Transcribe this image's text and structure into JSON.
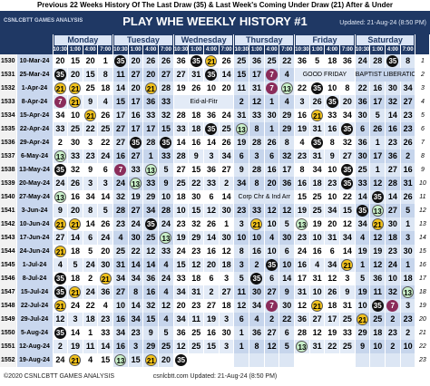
{
  "header": {
    "caption": "Previous 22 Weeks History Of The Last Draw (35) & Last Week's Coming Under Draw (21) After & Under",
    "logo": "CSNLCBTT GAMES ANALYSIS",
    "title": "PLAY WHE WEEKLY HISTORY #1",
    "updated": "Updated: 21-Aug-24 (8:50 PM)"
  },
  "days": [
    "Monday",
    "Tuesday",
    "Wednesday",
    "Thursday",
    "Friday",
    "Saturday"
  ],
  "times": [
    "10:30",
    "1:00",
    "4:00",
    "7:00"
  ],
  "circles": [
    {
      "number": 35,
      "color": "#111111",
      "text": "#ffffff"
    },
    {
      "number": 21,
      "color": "#f2c21b",
      "text": "#000000"
    },
    {
      "number": 7,
      "color": "#8a2c5a",
      "text": "#ffffff"
    },
    {
      "number": 13,
      "color": "#c9f0c9",
      "text": "#000000"
    }
  ],
  "rows": [
    {
      "id": "1530",
      "date": "10-Mar-24",
      "n": "1",
      "days": [
        [
          20,
          15,
          20,
          1
        ],
        [
          35,
          20,
          26,
          26
        ],
        [
          36,
          35,
          21,
          26
        ],
        [
          25,
          36,
          25,
          22
        ],
        [
          36,
          5,
          18,
          36
        ],
        [
          24,
          28,
          35,
          8
        ]
      ]
    },
    {
      "id": "1531",
      "date": "25-Mar-24",
      "n": "2",
      "days": [
        [
          35,
          20,
          15,
          8
        ],
        [
          11,
          27,
          20,
          27
        ],
        [
          27,
          31,
          35,
          14
        ],
        [
          15,
          17,
          7,
          4
        ],
        "GOOD FRIDAY",
        "BAPTIST LIBERATION"
      ]
    },
    {
      "id": "1532",
      "date": "1-Apr-24",
      "n": "3",
      "days": [
        [
          21,
          21,
          25,
          18
        ],
        [
          14,
          20,
          21,
          28
        ],
        [
          19,
          26,
          10,
          20
        ],
        [
          11,
          31,
          7,
          13
        ],
        [
          22,
          35,
          10,
          8
        ],
        [
          22,
          16,
          30,
          34
        ]
      ]
    },
    {
      "id": "1533",
      "date": "8-Apr-24",
      "n": "4",
      "days": [
        [
          7,
          21,
          9,
          4
        ],
        [
          15,
          17,
          36,
          33
        ],
        "Eid-al-Fitr",
        [
          2,
          12,
          1,
          4
        ],
        [
          3,
          26,
          35,
          20
        ],
        [
          36,
          17,
          32,
          27
        ]
      ]
    },
    {
      "id": "1534",
      "date": "15-Apr-24",
      "n": "5",
      "days": [
        [
          34,
          10,
          21,
          26
        ],
        [
          17,
          16,
          33,
          32
        ],
        [
          28,
          18,
          36,
          24
        ],
        [
          31,
          33,
          30,
          29
        ],
        [
          16,
          21,
          33,
          34
        ],
        [
          30,
          5,
          14,
          23
        ]
      ]
    },
    {
      "id": "1535",
      "date": "22-Apr-24",
      "n": "6",
      "days": [
        [
          33,
          25,
          22,
          25
        ],
        [
          27,
          17,
          17,
          15
        ],
        [
          33,
          18,
          35,
          25
        ],
        [
          13,
          8,
          1,
          29
        ],
        [
          19,
          31,
          16,
          35
        ],
        [
          6,
          26,
          16,
          23
        ]
      ]
    },
    {
      "id": "1536",
      "date": "29-Apr-24",
      "n": "7",
      "days": [
        [
          2,
          30,
          3,
          22
        ],
        [
          27,
          35,
          28,
          35
        ],
        [
          14,
          16,
          14,
          26
        ],
        [
          19,
          28,
          26,
          8
        ],
        [
          4,
          35,
          8,
          32
        ],
        [
          36,
          1,
          23,
          26
        ]
      ]
    },
    {
      "id": "1537",
      "date": "6-May-24",
      "n": "8",
      "days": [
        [
          13,
          33,
          23,
          24
        ],
        [
          16,
          27,
          1,
          33
        ],
        [
          28,
          9,
          3,
          34
        ],
        [
          6,
          3,
          6,
          32
        ],
        [
          23,
          31,
          9,
          27
        ],
        [
          30,
          17,
          36,
          2
        ]
      ]
    },
    {
      "id": "1538",
      "date": "13-May-24",
      "n": "9",
      "days": [
        [
          35,
          32,
          9,
          6
        ],
        [
          7,
          33,
          13,
          5
        ],
        [
          27,
          15,
          36,
          27
        ],
        [
          9,
          28,
          16,
          17
        ],
        [
          8,
          34,
          10,
          35
        ],
        [
          25,
          1,
          27,
          16
        ]
      ]
    },
    {
      "id": "1539",
      "date": "20-May-24",
      "n": "10",
      "days": [
        [
          24,
          26,
          3,
          3
        ],
        [
          24,
          13,
          33,
          9
        ],
        [
          25,
          22,
          33,
          2
        ],
        [
          34,
          8,
          20,
          36
        ],
        [
          16,
          18,
          23,
          35
        ],
        [
          33,
          12,
          28,
          31
        ]
      ]
    },
    {
      "id": "1540",
      "date": "27-May-24",
      "n": "11",
      "days": [
        [
          13,
          16,
          34,
          14
        ],
        [
          32,
          19,
          29,
          10
        ],
        [
          18,
          30,
          6,
          14
        ],
        "Corp Chr & Ind Arr",
        [
          15,
          25,
          10,
          22
        ],
        [
          14,
          35,
          14,
          26
        ]
      ]
    },
    {
      "id": "1541",
      "date": "3-Jun-24",
      "n": "12",
      "days": [
        [
          9,
          20,
          8,
          5
        ],
        [
          28,
          27,
          34,
          28
        ],
        [
          10,
          15,
          12,
          30
        ],
        [
          23,
          33,
          12,
          12
        ],
        [
          19,
          25,
          34,
          15
        ],
        [
          35,
          13,
          27,
          5
        ]
      ]
    },
    {
      "id": "1542",
      "date": "10-Jun-24",
      "n": "13",
      "days": [
        [
          21,
          21,
          14,
          26
        ],
        [
          23,
          24,
          35,
          24
        ],
        [
          23,
          32,
          26,
          1
        ],
        [
          3,
          21,
          10,
          5
        ],
        [
          13,
          19,
          20,
          12
        ],
        [
          34,
          21,
          30,
          1
        ]
      ]
    },
    {
      "id": "1543",
      "date": "17-Jun-24",
      "n": "14",
      "days": [
        [
          27,
          14,
          6,
          24
        ],
        [
          4,
          30,
          25,
          13
        ],
        [
          19,
          29,
          14,
          30
        ],
        [
          10,
          10,
          4,
          30
        ],
        [
          23,
          10,
          31,
          34
        ],
        [
          4,
          12,
          18,
          3
        ]
      ]
    },
    {
      "id": "1544",
      "date": "24-Jun-24",
      "n": "15",
      "days": [
        [
          21,
          18,
          5,
          20
        ],
        [
          25,
          22,
          12,
          33
        ],
        [
          24,
          23,
          16,
          12
        ],
        [
          8,
          16,
          10,
          6
        ],
        [
          24,
          16,
          6,
          14
        ],
        [
          19,
          19,
          23,
          30
        ]
      ]
    },
    {
      "id": "1545",
      "date": "1-Jul-24",
      "n": "16",
      "days": [
        [
          4,
          5,
          24,
          30
        ],
        [
          31,
          14,
          14,
          4
        ],
        [
          15,
          12,
          20,
          18
        ],
        [
          3,
          2,
          35,
          10
        ],
        [
          16,
          4,
          34,
          21
        ],
        [
          1,
          12,
          24,
          1
        ]
      ]
    },
    {
      "id": "1546",
      "date": "8-Jul-24",
      "n": "17",
      "days": [
        [
          35,
          18,
          2,
          21
        ],
        [
          34,
          34,
          36,
          24
        ],
        [
          33,
          18,
          6,
          3
        ],
        [
          5,
          35,
          6,
          14
        ],
        [
          17,
          31,
          12,
          3
        ],
        [
          5,
          36,
          10,
          18
        ]
      ]
    },
    {
      "id": "1547",
      "date": "15-Jul-24",
      "n": "18",
      "days": [
        [
          35,
          21,
          24,
          36
        ],
        [
          27,
          8,
          16,
          4
        ],
        [
          34,
          31,
          2,
          27
        ],
        [
          11,
          30,
          27,
          9
        ],
        [
          31,
          10,
          26,
          9
        ],
        [
          19,
          11,
          32,
          13
        ]
      ]
    },
    {
      "id": "1548",
      "date": "22-Jul-24",
      "n": "19",
      "days": [
        [
          21,
          24,
          22,
          4
        ],
        [
          10,
          14,
          32,
          12
        ],
        [
          20,
          23,
          27,
          18
        ],
        [
          12,
          34,
          7,
          30
        ],
        [
          12,
          21,
          18,
          31
        ],
        [
          10,
          35,
          7,
          3
        ]
      ]
    },
    {
      "id": "1549",
      "date": "29-Jul-24",
      "n": "20",
      "days": [
        [
          12,
          3,
          18,
          23
        ],
        [
          16,
          34,
          15,
          4
        ],
        [
          34,
          11,
          19,
          3
        ],
        [
          6,
          4,
          2,
          22
        ],
        [
          36,
          27,
          17,
          25
        ],
        [
          21,
          25,
          2,
          23
        ]
      ]
    },
    {
      "id": "1550",
      "date": "5-Aug-24",
      "n": "21",
      "days": [
        [
          35,
          14,
          1,
          33
        ],
        [
          34,
          23,
          9,
          5
        ],
        [
          36,
          25,
          16,
          30
        ],
        [
          1,
          36,
          27,
          6
        ],
        [
          28,
          12,
          19,
          33
        ],
        [
          29,
          18,
          23,
          2
        ]
      ]
    },
    {
      "id": "1551",
      "date": "12-Aug-24",
      "n": "22",
      "days": [
        [
          2,
          19,
          11,
          14
        ],
        [
          16,
          3,
          29,
          25
        ],
        [
          12,
          25,
          15,
          3
        ],
        [
          1,
          8,
          12,
          5
        ],
        [
          13,
          31,
          22,
          25
        ],
        [
          9,
          10,
          2,
          10
        ]
      ]
    },
    {
      "id": "1552",
      "date": "19-Aug-24",
      "n": "23",
      "days": [
        [
          24,
          21,
          4,
          15
        ],
        [
          13,
          15,
          21,
          20
        ],
        [
          35,
          null,
          null,
          null
        ],
        [
          null,
          null,
          null,
          null
        ],
        [
          null,
          null,
          null,
          null
        ],
        [
          null,
          null,
          null,
          null
        ]
      ]
    }
  ],
  "footer": {
    "left": "©2020 CSNLCBTT GAMES ANALYSIS",
    "center": "csnlcbtt.com Updated: 21-Aug-24 (8:50 PM)"
  }
}
